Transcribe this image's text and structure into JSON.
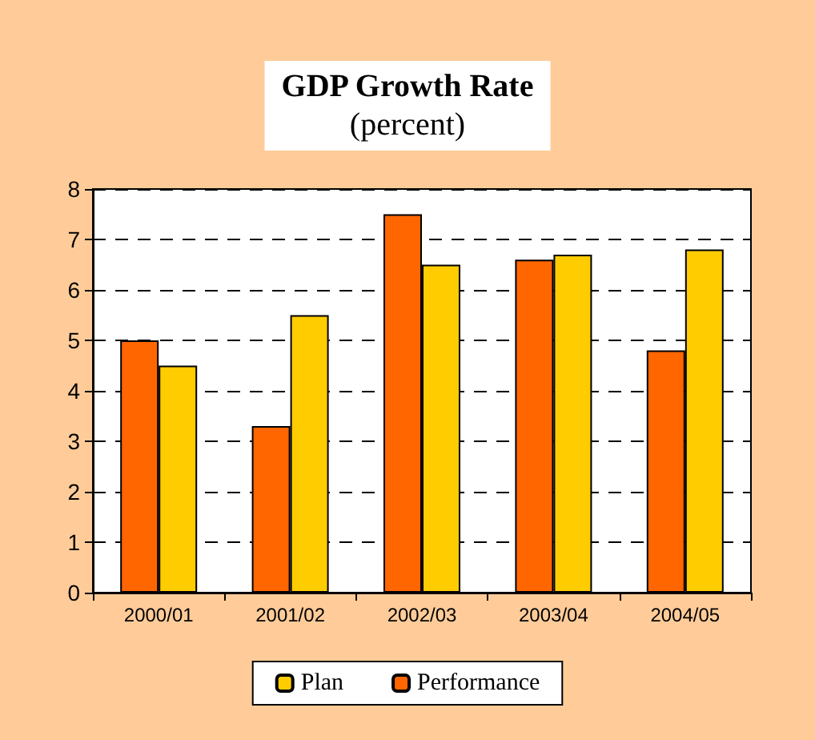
{
  "chart_data": {
    "type": "bar",
    "title": "GDP Growth Rate",
    "subtitle": "(percent)",
    "categories": [
      "2000/01",
      "2001/02",
      "2002/03",
      "2003/04",
      "2004/05"
    ],
    "series": [
      {
        "name": "Performance",
        "color": "#ff6600",
        "values": [
          5.0,
          3.3,
          7.5,
          6.6,
          4.8
        ]
      },
      {
        "name": "Plan",
        "color": "#ffcc00",
        "values": [
          4.5,
          5.5,
          6.5,
          6.7,
          6.8
        ]
      }
    ],
    "ylim": [
      0,
      8
    ],
    "yticks": [
      0,
      1,
      2,
      3,
      4,
      5,
      6,
      7,
      8
    ],
    "grid": "y",
    "legend": "bottom"
  }
}
